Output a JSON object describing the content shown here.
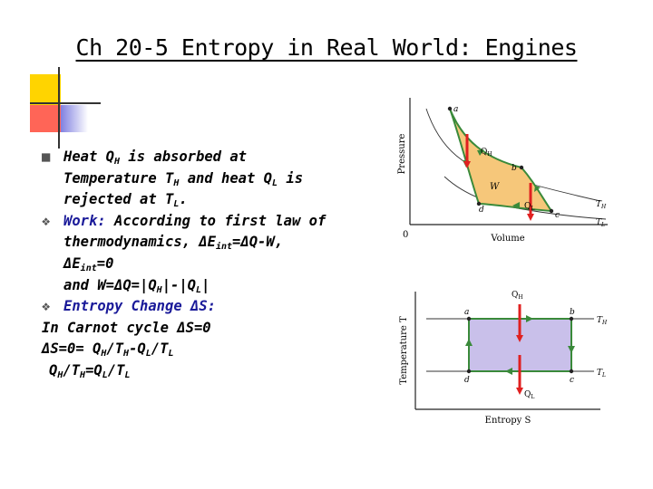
{
  "title": "Ch 20-5 Entropy in Real World: Engines",
  "lines": {
    "l1a": "Heat Q",
    "l1b": "H",
    "l1c": " is absorbed at",
    "l2a": "Temperature T",
    "l2b": "H",
    "l2c": " and heat Q",
    "l2d": "L",
    "l2e": " is",
    "l3a": "rejected at T",
    "l3b": "L",
    "l3c": ".",
    "l4a": "Work:",
    "l4b": " According to first law of",
    "l5a": "thermodynamics, ΔE",
    "l5b": "int",
    "l5c": "=ΔQ-W,",
    "l6a": "ΔE",
    "l6b": "int",
    "l6c": "=0",
    "l7a": "and W=ΔQ=|Q",
    "l7b": "H",
    "l7c": "|-|Q",
    "l7d": "L",
    "l7e": "|",
    "l8a": "Entropy Change ΔS:",
    "l9a": "In Carnot cycle ΔS=0",
    "l10a": "ΔS=0= Q",
    "l10b": "H",
    "l10c": "/T",
    "l10d": "H",
    "l10e": "-Q",
    "l10f": "L",
    "l10g": "/T",
    "l10h": "L",
    "l11a": "Q",
    "l11b": "H",
    "l11c": "/T",
    "l11d": "H",
    "l11e": "=Q",
    "l11f": "L",
    "l11g": "/T",
    "l11h": "L"
  },
  "pv_diagram": {
    "ylabel": "Pressure",
    "xlabel": "Volume",
    "origin": "0",
    "a": "a",
    "b": "b",
    "c": "c",
    "d": "d",
    "W": "W",
    "QH": "Q",
    "QH_sub": "H",
    "QL": "Q",
    "QL_sub": "L",
    "TH": "T",
    "TH_sub": "H",
    "TL": "T",
    "TL_sub": "L"
  },
  "ts_diagram": {
    "ylabel": "Temperature T",
    "xlabel": "Entropy S",
    "a": "a",
    "b": "b",
    "c": "c",
    "d": "d",
    "QH": "Q",
    "QH_sub": "H",
    "QL": "Q",
    "QL_sub": "L",
    "TH": "T",
    "TH_sub": "H",
    "TL": "T",
    "TL_sub": "L"
  },
  "colors": {
    "accent_yellow": "#ffd400",
    "accent_red": "#ff3333",
    "accent_blue": "#8c8ce6",
    "fill_orange": "#f6c77a",
    "fill_purple": "#c9c0ea",
    "arrow_red": "#e02020",
    "arrow_green": "#3a8a3a"
  }
}
